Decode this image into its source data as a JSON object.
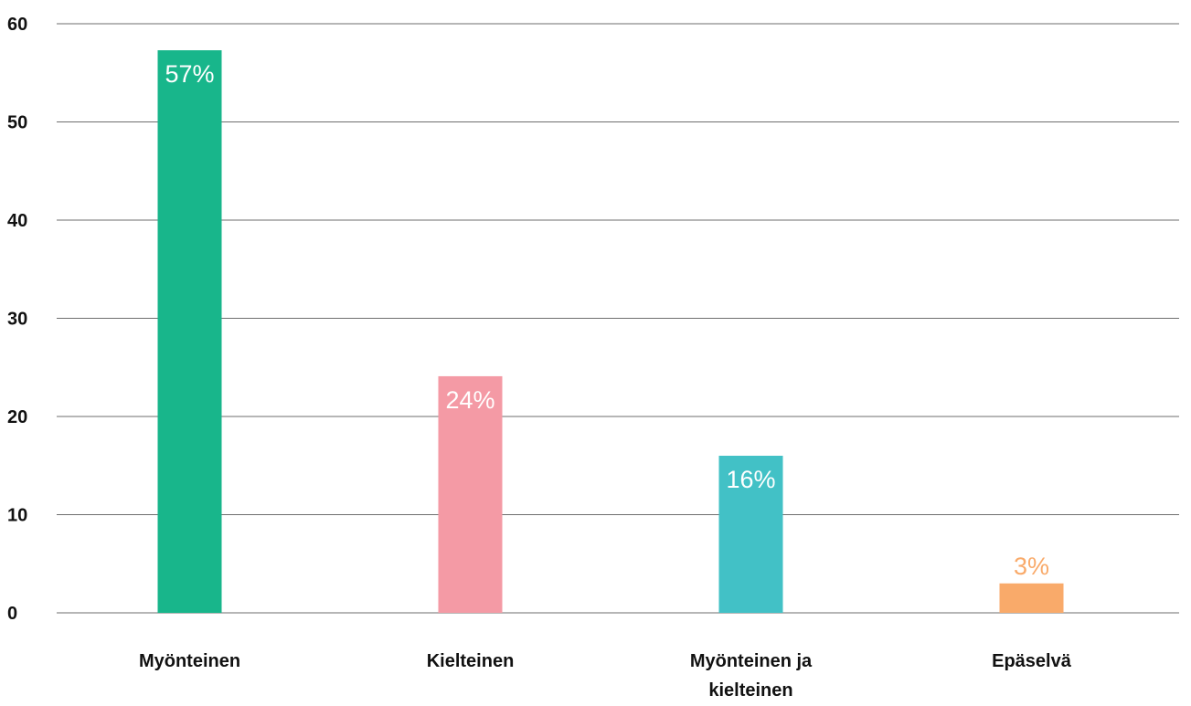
{
  "chart_data": {
    "type": "bar",
    "categories": [
      "Myönteinen",
      "Kielteinen",
      "Myönteinen ja kielteinen",
      "Epäselvä"
    ],
    "category_lines": [
      [
        "Myönteinen"
      ],
      [
        "Kielteinen"
      ],
      [
        "Myönteinen ja",
        "kielteinen"
      ],
      [
        "Epäselvä"
      ]
    ],
    "values": [
      57.3,
      24.1,
      16,
      3
    ],
    "data_labels": [
      "57%",
      "24%",
      "16%",
      "3%"
    ],
    "data_label_position": [
      "inside",
      "inside",
      "inside",
      "above"
    ],
    "colors": [
      "#18b68b",
      "#f49aa5",
      "#42c1c6",
      "#f9aa6a"
    ],
    "data_label_colors": [
      "#ffffff",
      "#ffffff",
      "#ffffff",
      "#f9aa6a"
    ],
    "title": "",
    "xlabel": "",
    "ylabel": "",
    "ylim": [
      0,
      60
    ],
    "yticks": [
      0,
      10,
      20,
      30,
      40,
      50,
      60
    ],
    "grid": true,
    "legend": "none"
  }
}
